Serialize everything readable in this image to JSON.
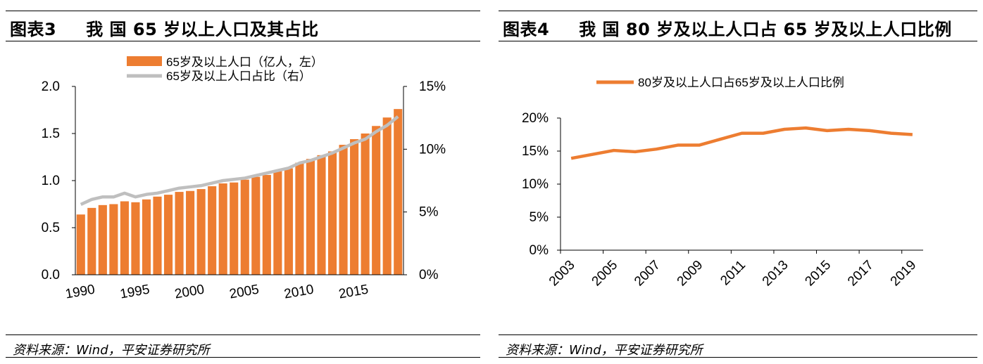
{
  "panel1": {
    "figure_label": "图表3",
    "title": "我 国 65 岁以上人口及其占比",
    "source": "资料来源：Wind，平安证券研究所"
  },
  "panel2": {
    "figure_label": "图表4",
    "title": "我 国 80 岁及以上人口占 65 岁及以上人口比例",
    "source": "资料来源：Wind，平安证券研究所"
  },
  "colors": {
    "bar": "#ED7D31",
    "line_gray": "#BFBFBF",
    "line_orange": "#ED7D31"
  },
  "chart_data": [
    {
      "type": "bar",
      "x": [
        1990,
        1991,
        1992,
        1993,
        1994,
        1995,
        1996,
        1997,
        1998,
        1999,
        2000,
        2001,
        2002,
        2003,
        2004,
        2005,
        2006,
        2007,
        2008,
        2009,
        2010,
        2011,
        2012,
        2013,
        2014,
        2015,
        2016,
        2017,
        2018,
        2019
      ],
      "xticks": [
        "1990",
        "1995",
        "2000",
        "2005",
        "2010",
        "2015"
      ],
      "yticks_left": [
        "0.0",
        "0.5",
        "1.0",
        "1.5",
        "2.0"
      ],
      "yticks_right": [
        "0%",
        "5%",
        "10%",
        "15%"
      ],
      "ylim_left": [
        0,
        2.0
      ],
      "ylim_right": [
        0,
        15
      ],
      "legend_position": "top",
      "series": [
        {
          "name": "65岁及以上人口（亿人，左）",
          "type": "bar",
          "axis": "left",
          "values": [
            0.64,
            0.71,
            0.74,
            0.75,
            0.78,
            0.77,
            0.8,
            0.83,
            0.85,
            0.88,
            0.89,
            0.91,
            0.94,
            0.97,
            0.98,
            1.01,
            1.04,
            1.06,
            1.1,
            1.13,
            1.19,
            1.23,
            1.27,
            1.31,
            1.38,
            1.44,
            1.5,
            1.58,
            1.67,
            1.76
          ]
        },
        {
          "name": "65岁及以上人口占比（右）",
          "type": "line",
          "axis": "right",
          "values": [
            5.6,
            6.0,
            6.2,
            6.2,
            6.5,
            6.2,
            6.4,
            6.5,
            6.7,
            6.9,
            7.0,
            7.1,
            7.3,
            7.5,
            7.6,
            7.7,
            7.9,
            8.1,
            8.3,
            8.5,
            8.9,
            9.1,
            9.4,
            9.7,
            10.1,
            10.5,
            10.8,
            11.4,
            11.9,
            12.6
          ]
        }
      ]
    },
    {
      "type": "line",
      "x": [
        2003,
        2004,
        2005,
        2006,
        2007,
        2008,
        2009,
        2010,
        2011,
        2012,
        2013,
        2014,
        2015,
        2016,
        2017,
        2018,
        2019
      ],
      "xticks": [
        "2003",
        "2005",
        "2007",
        "2009",
        "2011",
        "2013",
        "2015",
        "2017",
        "2019"
      ],
      "yticks": [
        "0%",
        "5%",
        "10%",
        "15%",
        "20%"
      ],
      "ylim": [
        0,
        20
      ],
      "legend_position": "top",
      "series": [
        {
          "name": "80岁及以上人口占65岁及以上人口比例",
          "values": [
            13.9,
            14.5,
            15.1,
            14.9,
            15.3,
            15.9,
            15.9,
            16.8,
            17.7,
            17.7,
            18.3,
            18.5,
            18.1,
            18.3,
            18.1,
            17.7,
            17.5
          ]
        }
      ]
    }
  ]
}
